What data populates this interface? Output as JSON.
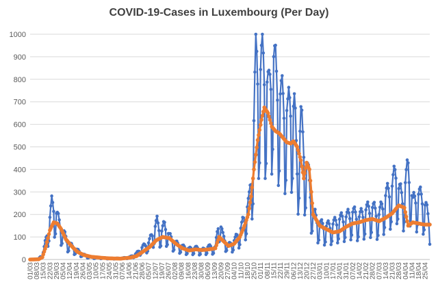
{
  "chart_data": {
    "type": "line",
    "title": "COVID-19-Cases in Luxembourg (Per Day)",
    "xlabel": "",
    "ylabel": "",
    "ylim": [
      0,
      1000
    ],
    "yticks": [
      0,
      100,
      200,
      300,
      400,
      500,
      600,
      700,
      800,
      900,
      1000
    ],
    "grid": true,
    "legend": "none",
    "x_start": "2020-03-01",
    "x_end": "2021-04-30",
    "tick_interval_days": 7,
    "tick_labels": [
      "01/03",
      "08/03",
      "15/03",
      "22/03",
      "29/03",
      "05/04",
      "12/04",
      "19/04",
      "26/04",
      "03/05",
      "10/05",
      "17/05",
      "24/05",
      "31/05",
      "07/06",
      "14/06",
      "21/06",
      "28/06",
      "05/07",
      "12/07",
      "19/07",
      "26/07",
      "02/08",
      "09/08",
      "16/08",
      "23/08",
      "30/08",
      "06/09",
      "13/09",
      "20/09",
      "27/09",
      "04/10",
      "11/10",
      "18/10",
      "25/10",
      "01/11",
      "08/11",
      "15/11",
      "22/11",
      "29/11",
      "06/12",
      "13/12",
      "20/12",
      "27/12",
      "03/01",
      "10/01",
      "17/01",
      "24/01",
      "31/01",
      "07/02",
      "14/02",
      "21/02",
      "28/02",
      "07/03",
      "14/03",
      "21/03",
      "28/03",
      "04/04",
      "11/04",
      "18/04",
      "25/04"
    ],
    "series": [
      {
        "color": "#4472C4",
        "keypoints": [
          [
            "2020-03-01",
            0
          ],
          [
            "2020-03-10",
            2
          ],
          [
            "2020-03-15",
            30
          ],
          [
            "2020-03-18",
            90
          ],
          [
            "2020-03-21",
            150
          ],
          [
            "2020-03-24",
            235
          ],
          [
            "2020-03-27",
            220
          ],
          [
            "2020-03-31",
            170
          ],
          [
            "2020-04-05",
            120
          ],
          [
            "2020-04-10",
            75
          ],
          [
            "2020-04-15",
            55
          ],
          [
            "2020-04-20",
            40
          ],
          [
            "2020-04-27",
            20
          ],
          [
            "2020-05-05",
            10
          ],
          [
            "2020-05-15",
            8
          ],
          [
            "2020-05-25",
            5
          ],
          [
            "2020-06-05",
            5
          ],
          [
            "2020-06-15",
            10
          ],
          [
            "2020-06-22",
            25
          ],
          [
            "2020-06-29",
            55
          ],
          [
            "2020-07-05",
            70
          ],
          [
            "2020-07-10",
            120
          ],
          [
            "2020-07-14",
            160
          ],
          [
            "2020-07-18",
            110
          ],
          [
            "2020-07-22",
            150
          ],
          [
            "2020-07-27",
            100
          ],
          [
            "2020-08-03",
            70
          ],
          [
            "2020-08-10",
            55
          ],
          [
            "2020-08-17",
            45
          ],
          [
            "2020-08-24",
            50
          ],
          [
            "2020-08-31",
            40
          ],
          [
            "2020-09-07",
            55
          ],
          [
            "2020-09-14",
            50
          ],
          [
            "2020-09-18",
            175
          ],
          [
            "2020-09-22",
            100
          ],
          [
            "2020-09-28",
            60
          ],
          [
            "2020-10-04",
            80
          ],
          [
            "2020-10-10",
            120
          ],
          [
            "2020-10-15",
            180
          ],
          [
            "2020-10-20",
            250
          ],
          [
            "2020-10-24",
            450
          ],
          [
            "2020-10-27",
            860
          ],
          [
            "2020-10-31",
            780
          ],
          [
            "2020-11-03",
            850
          ],
          [
            "2020-11-06",
            800
          ],
          [
            "2020-11-10",
            700
          ],
          [
            "2020-11-14",
            890
          ],
          [
            "2020-11-18",
            760
          ],
          [
            "2020-11-22",
            700
          ],
          [
            "2020-11-26",
            660
          ],
          [
            "2020-11-30",
            620
          ],
          [
            "2020-12-03",
            670
          ],
          [
            "2020-12-07",
            640
          ],
          [
            "2020-12-10",
            400
          ],
          [
            "2020-12-14",
            590
          ],
          [
            "2020-12-18",
            440
          ],
          [
            "2020-12-22",
            350
          ],
          [
            "2020-12-27",
            200
          ],
          [
            "2021-01-03",
            150
          ],
          [
            "2021-01-10",
            140
          ],
          [
            "2021-01-17",
            150
          ],
          [
            "2021-01-24",
            170
          ],
          [
            "2021-01-31",
            180
          ],
          [
            "2021-02-07",
            200
          ],
          [
            "2021-02-14",
            180
          ],
          [
            "2021-02-21",
            210
          ],
          [
            "2021-02-28",
            220
          ],
          [
            "2021-03-07",
            190
          ],
          [
            "2021-03-14",
            270
          ],
          [
            "2021-03-21",
            310
          ],
          [
            "2021-03-25",
            380
          ],
          [
            "2021-03-28",
            300
          ],
          [
            "2021-04-01",
            260
          ],
          [
            "2021-04-07",
            390
          ],
          [
            "2021-04-12",
            240
          ],
          [
            "2021-04-17",
            280
          ],
          [
            "2021-04-22",
            260
          ],
          [
            "2021-04-26",
            220
          ],
          [
            "2021-04-30",
            150
          ]
        ]
      },
      {
        "color": "#ED7D31",
        "keypoints": [
          [
            "2020-03-01",
            0
          ],
          [
            "2020-03-10",
            1
          ],
          [
            "2020-03-14",
            10
          ],
          [
            "2020-03-18",
            60
          ],
          [
            "2020-03-22",
            130
          ],
          [
            "2020-03-26",
            165
          ],
          [
            "2020-03-30",
            160
          ],
          [
            "2020-04-03",
            135
          ],
          [
            "2020-04-08",
            90
          ],
          [
            "2020-04-14",
            60
          ],
          [
            "2020-04-20",
            35
          ],
          [
            "2020-04-27",
            20
          ],
          [
            "2020-05-05",
            12
          ],
          [
            "2020-05-15",
            8
          ],
          [
            "2020-05-25",
            5
          ],
          [
            "2020-06-05",
            4
          ],
          [
            "2020-06-15",
            8
          ],
          [
            "2020-06-22",
            15
          ],
          [
            "2020-06-29",
            35
          ],
          [
            "2020-07-06",
            55
          ],
          [
            "2020-07-13",
            85
          ],
          [
            "2020-07-20",
            100
          ],
          [
            "2020-07-27",
            95
          ],
          [
            "2020-08-03",
            70
          ],
          [
            "2020-08-10",
            50
          ],
          [
            "2020-08-17",
            40
          ],
          [
            "2020-08-24",
            45
          ],
          [
            "2020-08-31",
            42
          ],
          [
            "2020-09-07",
            45
          ],
          [
            "2020-09-14",
            50
          ],
          [
            "2020-09-18",
            100
          ],
          [
            "2020-09-23",
            80
          ],
          [
            "2020-09-28",
            60
          ],
          [
            "2020-10-04",
            70
          ],
          [
            "2020-10-10",
            100
          ],
          [
            "2020-10-15",
            150
          ],
          [
            "2020-10-19",
            200
          ],
          [
            "2020-10-22",
            280
          ],
          [
            "2020-10-25",
            400
          ],
          [
            "2020-10-29",
            530
          ],
          [
            "2020-11-02",
            620
          ],
          [
            "2020-11-05",
            675
          ],
          [
            "2020-11-09",
            650
          ],
          [
            "2020-11-13",
            590
          ],
          [
            "2020-11-17",
            570
          ],
          [
            "2020-11-21",
            560
          ],
          [
            "2020-11-25",
            540
          ],
          [
            "2020-11-29",
            520
          ],
          [
            "2020-12-03",
            515
          ],
          [
            "2020-12-06",
            525
          ],
          [
            "2020-12-10",
            500
          ],
          [
            "2020-12-14",
            440
          ],
          [
            "2020-12-17",
            360
          ],
          [
            "2020-12-20",
            430
          ],
          [
            "2020-12-23",
            400
          ],
          [
            "2020-12-27",
            200
          ],
          [
            "2021-01-03",
            150
          ],
          [
            "2021-01-10",
            135
          ],
          [
            "2021-01-17",
            120
          ],
          [
            "2021-01-24",
            125
          ],
          [
            "2021-01-31",
            145
          ],
          [
            "2021-02-07",
            160
          ],
          [
            "2021-02-14",
            165
          ],
          [
            "2021-02-21",
            175
          ],
          [
            "2021-02-28",
            180
          ],
          [
            "2021-03-07",
            170
          ],
          [
            "2021-03-14",
            185
          ],
          [
            "2021-03-21",
            205
          ],
          [
            "2021-03-28",
            240
          ],
          [
            "2021-04-03",
            230
          ],
          [
            "2021-04-07",
            150
          ],
          [
            "2021-04-12",
            165
          ],
          [
            "2021-04-18",
            160
          ],
          [
            "2021-04-24",
            155
          ],
          [
            "2021-04-30",
            155
          ]
        ]
      }
    ]
  }
}
